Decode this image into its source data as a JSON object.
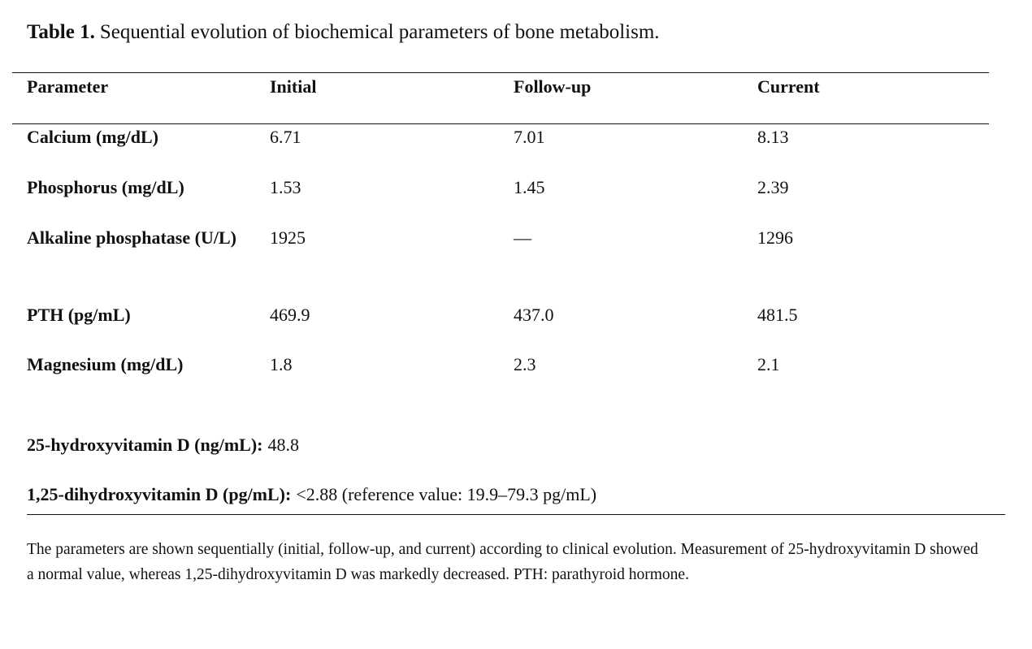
{
  "caption": {
    "label": "Table 1.",
    "text": "Sequential evolution of biochemical parameters of bone metabolism."
  },
  "table": {
    "header": [
      "Parameter",
      "Initial",
      "Follow-up",
      "Current"
    ],
    "rows": [
      [
        "Calcium (mg/dL)",
        "6.71",
        "7.01",
        "8.13"
      ],
      [
        "Phosphorus (mg/dL)",
        "1.53",
        "1.45",
        "2.39"
      ],
      [
        "Alkaline phosphatase (U/L)",
        "1925",
        "—",
        "1296"
      ],
      [
        "PTH (pg/mL)",
        "469.9",
        "437.0",
        "481.5"
      ],
      [
        "Magnesium (mg/dL)",
        "1.8",
        "2.3",
        "2.1"
      ]
    ]
  },
  "notes": [
    {
      "label": "25-hydroxyvitamin D (ng/mL):",
      "text": "48.8"
    },
    {
      "label": "1,25-dihydroxyvitamin D (pg/mL):",
      "text": "<2.88 (reference value: 19.9–79.3 pg/mL)"
    }
  ],
  "footnote": "The parameters are shown sequentially (initial, follow-up, and current) according to clinical evolution. Measurement of 25-hydroxyvitamin D showed a normal value, whereas 1,25-dihydroxyvitamin D was markedly decreased. PTH: parathyroid hormone."
}
